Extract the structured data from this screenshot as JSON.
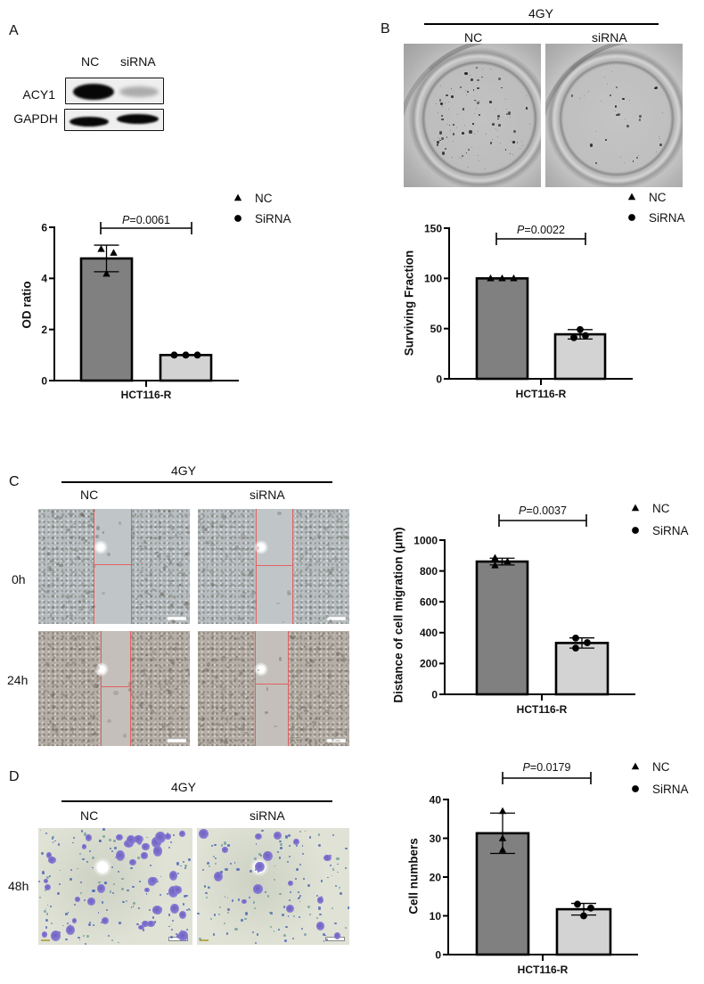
{
  "panel_a": {
    "letter": "A",
    "blot": {
      "column_labels": [
        "NC",
        "siRNA"
      ],
      "row_labels": [
        "ACY1",
        "GAPDH"
      ]
    }
  },
  "panel_b": {
    "letter": "B",
    "treatment": "4GY",
    "column_labels": [
      "NC",
      "siRNA"
    ]
  },
  "panel_c": {
    "letter": "C",
    "treatment": "4GY",
    "column_labels": [
      "NC",
      "siRNA"
    ],
    "row_labels": [
      "0h",
      "24h"
    ]
  },
  "panel_d": {
    "letter": "D",
    "treatment": "4GY",
    "column_labels": [
      "NC",
      "siRNA"
    ],
    "row_labels": [
      "48h"
    ]
  },
  "colors": {
    "nc_bar": "#808080",
    "sirna_bar": "#d3d3d3",
    "scratch_marker": "#e16262",
    "crystal_violet": "#7a6cc4"
  },
  "chart_data": [
    {
      "panel": "A",
      "type": "bar",
      "title": "",
      "categories": [
        "NC",
        "SiRNA"
      ],
      "values": [
        4.78,
        1.0
      ],
      "xlabel": "HCT116-R",
      "ylabel": "OD ratio",
      "ylim": [
        0,
        6
      ],
      "yticks": [
        0,
        2,
        4,
        6
      ],
      "grid": false,
      "legend_position": "top-right",
      "legend": [
        {
          "label": "NC",
          "marker": "triangle"
        },
        {
          "label": "SiRNA",
          "marker": "circle"
        }
      ],
      "pvalue": {
        "symbol": "P",
        "text": "=0.0061"
      },
      "series": [
        {
          "name": "NC",
          "mean": 4.78,
          "sd": 0.52,
          "points": [
            5.15,
            5.0,
            4.18
          ],
          "color": "#808080",
          "marker": "triangle"
        },
        {
          "name": "SiRNA",
          "mean": 1.0,
          "sd": 0,
          "points": [
            1.0,
            1.0,
            1.0
          ],
          "color": "#d3d3d3",
          "marker": "circle"
        }
      ]
    },
    {
      "panel": "B",
      "type": "bar",
      "title": "",
      "categories": [
        "NC",
        "SiRNA"
      ],
      "values": [
        100,
        44.3
      ],
      "xlabel": "HCT116-R",
      "ylabel": "Surviving Fraction",
      "ylim": [
        0,
        150
      ],
      "yticks": [
        0,
        50,
        100,
        150
      ],
      "grid": false,
      "legend_position": "top-right",
      "legend": [
        {
          "label": "NC",
          "marker": "triangle"
        },
        {
          "label": "SiRNA",
          "marker": "circle"
        }
      ],
      "pvalue": {
        "symbol": "P",
        "text": "=0.0022"
      },
      "series": [
        {
          "name": "NC",
          "mean": 100,
          "sd": 0,
          "points": [
            100,
            100,
            100
          ],
          "color": "#808080",
          "marker": "triangle"
        },
        {
          "name": "SiRNA",
          "mean": 44.3,
          "sd": 4.7,
          "points": [
            49,
            41,
            43
          ],
          "color": "#d3d3d3",
          "marker": "circle"
        }
      ]
    },
    {
      "panel": "C",
      "type": "bar",
      "title": "",
      "categories": [
        "NC",
        "SiRNA"
      ],
      "values": [
        861,
        333
      ],
      "xlabel": "HCT116-R",
      "ylabel": "Distance of cell migration (μm)",
      "ylim": [
        0,
        1000
      ],
      "yticks": [
        0,
        200,
        400,
        600,
        800,
        1000
      ],
      "grid": false,
      "legend_position": "top-right",
      "legend": [
        {
          "label": "NC",
          "marker": "triangle"
        },
        {
          "label": "SiRNA",
          "marker": "circle"
        }
      ],
      "pvalue": {
        "symbol": "P",
        "text": "=0.0037"
      },
      "series": [
        {
          "name": "NC",
          "mean": 861,
          "sd": 22,
          "points": [
            885,
            862,
            836
          ],
          "color": "#808080",
          "marker": "triangle"
        },
        {
          "name": "SiRNA",
          "mean": 333,
          "sd": 33,
          "points": [
            365,
            335,
            300
          ],
          "color": "#d3d3d3",
          "marker": "circle"
        }
      ]
    },
    {
      "panel": "D",
      "type": "bar",
      "title": "",
      "categories": [
        "NC",
        "SiRNA"
      ],
      "values": [
        31.3,
        11.7
      ],
      "xlabel": "HCT116-R",
      "ylabel": "Cell numbers",
      "ylim": [
        0,
        40
      ],
      "yticks": [
        0,
        10,
        20,
        30,
        40
      ],
      "grid": false,
      "legend_position": "top-right",
      "legend": [
        {
          "label": "NC",
          "marker": "triangle"
        },
        {
          "label": "SiRNA",
          "marker": "circle"
        }
      ],
      "pvalue": {
        "symbol": "P",
        "text": "=0.0179"
      },
      "series": [
        {
          "name": "NC",
          "mean": 31.3,
          "sd": 5.2,
          "points": [
            37,
            30,
            27
          ],
          "color": "#808080",
          "marker": "triangle"
        },
        {
          "name": "SiRNA",
          "mean": 11.7,
          "sd": 1.5,
          "points": [
            13,
            12,
            10
          ],
          "color": "#d3d3d3",
          "marker": "circle"
        }
      ]
    }
  ]
}
